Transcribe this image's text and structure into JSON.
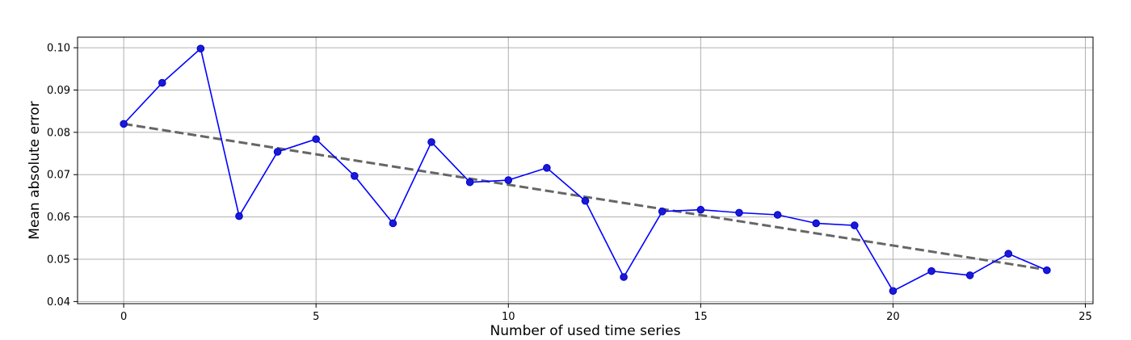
{
  "chart_data": {
    "type": "line",
    "title": "",
    "xlabel": "Number of used time series",
    "ylabel": "Mean absolute error",
    "xlim": [
      -1.2,
      25.2
    ],
    "ylim": [
      0.0395,
      0.1025
    ],
    "xticks": [
      0,
      5,
      10,
      15,
      20,
      25
    ],
    "yticks": [
      0.04,
      0.05,
      0.06,
      0.07,
      0.08,
      0.09,
      0.1
    ],
    "ytick_labels": [
      "0.04",
      "0.05",
      "0.06",
      "0.07",
      "0.08",
      "0.09",
      "0.10"
    ],
    "grid": true,
    "series": [
      {
        "color": "#0000ff",
        "marker": "circle",
        "x": [
          0,
          1,
          2,
          3,
          4,
          5,
          6,
          7,
          8,
          9,
          10,
          11,
          12,
          13,
          14,
          15,
          16,
          17,
          18,
          19,
          20,
          21,
          22,
          23,
          24
        ],
        "y": [
          0.082,
          0.0917,
          0.0998,
          0.0602,
          0.0754,
          0.0784,
          0.0697,
          0.0585,
          0.0777,
          0.0682,
          0.0687,
          0.0716,
          0.0638,
          0.0458,
          0.0613,
          0.0617,
          0.061,
          0.0605,
          0.0585,
          0.058,
          0.0425,
          0.0472,
          0.0462,
          0.0513,
          0.0474
        ]
      }
    ],
    "trend": {
      "color": "#666666",
      "style": "dashed",
      "x": [
        0,
        24
      ],
      "y": [
        0.082,
        0.0475
      ]
    }
  }
}
